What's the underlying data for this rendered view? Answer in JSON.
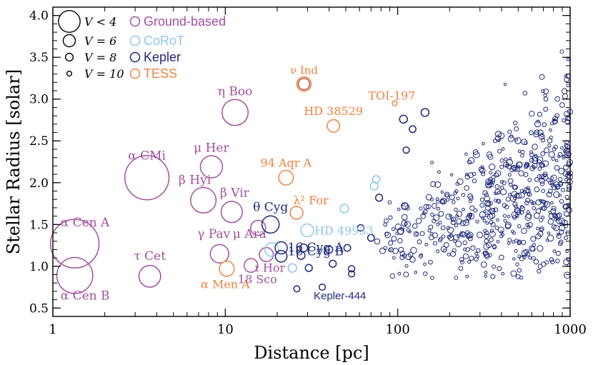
{
  "chart_data": {
    "type": "scatter",
    "xlabel": "Distance [pc]",
    "ylabel": "Stellar Radius [solar]",
    "xscale": "log",
    "xlim": [
      1,
      1000
    ],
    "ylim": [
      0.4,
      4.1
    ],
    "x_ticks": [
      1,
      10,
      100,
      1000
    ],
    "x_tick_labels": [
      "1",
      "10",
      "100",
      "1000"
    ],
    "y_ticks": [
      0.5,
      1.0,
      1.5,
      2.0,
      2.5,
      3.0,
      3.5,
      4.0
    ],
    "y_tick_labels": [
      "0.5",
      "1.0",
      "1.5",
      "2.0",
      "2.5",
      "3.0",
      "3.5",
      "4.0"
    ],
    "colors": {
      "Ground-based": "#a0509c",
      "CoRoT": "#8fc6ea",
      "Kepler": "#1f2a7a",
      "TESS": "#ee8240",
      "axis": "#000000"
    },
    "legend": {
      "placement": "top-left",
      "size_entries": [
        {
          "label": "V < 4",
          "vmag": 3.5
        },
        {
          "label": "V = 6",
          "vmag": 6
        },
        {
          "label": "V = 8",
          "vmag": 8
        },
        {
          "label": "V = 10",
          "vmag": 10
        }
      ],
      "color_entries": [
        {
          "label": "Ground-based",
          "series": "Ground-based"
        },
        {
          "label": "CoRoT",
          "series": "CoRoT"
        },
        {
          "label": "Kepler",
          "series": "Kepler"
        },
        {
          "label": "TESS",
          "series": "TESS"
        }
      ]
    },
    "series": [
      {
        "name": "Ground-based",
        "points": [
          {
            "label": "α Cen A",
            "x": 1.34,
            "y": 1.27,
            "vmag": 0.0
          },
          {
            "label": "α Cen B",
            "x": 1.34,
            "y": 0.89,
            "vmag": 1.3
          },
          {
            "label": "α CMi",
            "x": 3.51,
            "y": 2.06,
            "vmag": 0.4
          },
          {
            "label": "τ Cet",
            "x": 3.65,
            "y": 0.88,
            "vmag": 3.5
          },
          {
            "label": "β Hyi",
            "x": 7.46,
            "y": 1.79,
            "vmag": 2.8
          },
          {
            "label": "μ Her",
            "x": 8.31,
            "y": 2.19,
            "vmag": 3.4
          },
          {
            "label": "γ Pav",
            "x": 9.26,
            "y": 1.15,
            "vmag": 4.2
          },
          {
            "label": "η Boo",
            "x": 11.4,
            "y": 2.84,
            "vmag": 2.7
          },
          {
            "label": "β Vir",
            "x": 10.9,
            "y": 1.65,
            "vmag": 3.6
          },
          {
            "label": "μ Ara",
            "x": 15.5,
            "y": 1.46,
            "vmag": 5.1
          },
          {
            "label": "18 Sco",
            "x": 14.1,
            "y": 1.01,
            "vmag": 5.5
          },
          {
            "label": "ι Hor",
            "x": 17.3,
            "y": 1.14,
            "vmag": 5.4
          }
        ]
      },
      {
        "name": "CoRoT",
        "points": [
          {
            "label": "HD 49933",
            "x": 29.9,
            "y": 1.43,
            "vmag": 5.8
          },
          {
            "label": "",
            "x": 18.6,
            "y": 1.2,
            "vmag": 5.5
          },
          {
            "label": "",
            "x": 24.5,
            "y": 0.98,
            "vmag": 7.6
          },
          {
            "label": "",
            "x": 49,
            "y": 1.69,
            "vmag": 7.6
          },
          {
            "label": "",
            "x": 73,
            "y": 1.96,
            "vmag": 8.0
          },
          {
            "label": "",
            "x": 75,
            "y": 2.04,
            "vmag": 8.2
          }
        ]
      },
      {
        "name": "Kepler",
        "points": [
          {
            "label": "θ Cyg",
            "x": 18.3,
            "y": 1.5,
            "vmag": 4.5
          },
          {
            "label": "16 Cyg B",
            "x": 21.1,
            "y": 1.12,
            "vmag": 6.2
          },
          {
            "label": "16 Cyg A",
            "x": 21.1,
            "y": 1.22,
            "vmag": 6.0
          },
          {
            "label": "Kepler-444",
            "x": 36.5,
            "y": 0.75,
            "vmag": 8.9
          },
          {
            "label": "",
            "x": 27.5,
            "y": 1.13,
            "vmag": 7.9
          },
          {
            "label": "",
            "x": 28.5,
            "y": 1.22,
            "vmag": 8.0
          },
          {
            "label": "",
            "x": 30.5,
            "y": 0.98,
            "vmag": 8.4
          },
          {
            "label": "",
            "x": 40.0,
            "y": 1.2,
            "vmag": 8.2
          },
          {
            "label": "",
            "x": 42.0,
            "y": 1.03,
            "vmag": 8.4
          },
          {
            "label": "",
            "x": 51.0,
            "y": 1.22,
            "vmag": 8.6
          },
          {
            "label": "",
            "x": 54.0,
            "y": 0.97,
            "vmag": 8.8
          },
          {
            "label": "",
            "x": 54.0,
            "y": 0.91,
            "vmag": 8.9
          },
          {
            "label": "",
            "x": 61.0,
            "y": 1.46,
            "vmag": 8.8
          },
          {
            "label": "",
            "x": 70.0,
            "y": 1.34,
            "vmag": 8.6
          },
          {
            "label": "",
            "x": 78.0,
            "y": 1.82,
            "vmag": 8.4
          },
          {
            "label": "",
            "x": 26.0,
            "y": 0.73,
            "vmag": 9.0
          },
          {
            "label": "",
            "x": 108.0,
            "y": 2.76,
            "vmag": 7.9
          },
          {
            "label": "",
            "x": 144.0,
            "y": 2.84,
            "vmag": 7.9
          },
          {
            "label": "",
            "x": 122.0,
            "y": 2.64,
            "vmag": 8.6
          },
          {
            "label": "",
            "x": 112.0,
            "y": 2.39,
            "vmag": 8.9
          },
          {
            "label": "",
            "x": 110.0,
            "y": 1.72,
            "vmag": 8.6
          },
          {
            "label": "",
            "x": 104.0,
            "y": 1.42,
            "vmag": 8.9
          }
        ],
        "generated_field": {
          "description": "dense background of faint Kepler targets",
          "count": 600,
          "x_range": [
            70,
            1000
          ],
          "y_range": [
            0.8,
            4.1
          ],
          "vmag_range": [
            9,
            13
          ],
          "seed": 1979
        }
      },
      {
        "name": "TESS",
        "points": [
          {
            "label": "ν Ind",
            "x": 28.6,
            "y": 3.18,
            "vmag": 5.3
          },
          {
            "label": "TOI-197",
            "x": 96.0,
            "y": 2.95,
            "vmag": 10.0
          },
          {
            "label": "HD 38529",
            "x": 42.4,
            "y": 2.68,
            "vmag": 5.9
          },
          {
            "label": "94 Aqr A",
            "x": 22.5,
            "y": 2.06,
            "vmag": 5.2
          },
          {
            "label": "λ² For",
            "x": 25.9,
            "y": 1.64,
            "vmag": 5.8
          },
          {
            "label": "α Men A",
            "x": 10.2,
            "y": 0.97,
            "vmag": 5.1
          }
        ]
      }
    ],
    "annotations": [
      {
        "text": "ν Ind",
        "series": "TESS",
        "color_series": "TESS"
      },
      {
        "text": "TOI-197",
        "series": "TESS"
      },
      {
        "text": "HD 38529",
        "series": "TESS"
      },
      {
        "text": "94 Aqr A",
        "series": "TESS"
      },
      {
        "text": "λ² For",
        "series": "TESS"
      },
      {
        "text": "α Men A",
        "series": "TESS"
      },
      {
        "text": "HD 49933",
        "series": "CoRoT"
      },
      {
        "text": "θ Cyg",
        "series": "Kepler"
      },
      {
        "text": "16 Cyg B",
        "series": "Kepler"
      },
      {
        "text": "16 Cyg A",
        "series": "Kepler"
      },
      {
        "text": "Kepler-444",
        "series": "Kepler"
      },
      {
        "text": "α Cen A",
        "series": "Ground-based"
      },
      {
        "text": "α Cen B",
        "series": "Ground-based"
      },
      {
        "text": "α CMi",
        "series": "Ground-based"
      },
      {
        "text": "τ Cet",
        "series": "Ground-based"
      },
      {
        "text": "β Hyi",
        "series": "Ground-based"
      },
      {
        "text": "μ Her",
        "series": "Ground-based"
      },
      {
        "text": "γ Pav",
        "series": "Ground-based"
      },
      {
        "text": "η Boo",
        "series": "Ground-based"
      },
      {
        "text": "β Vir",
        "series": "Ground-based"
      },
      {
        "text": "μ Ara",
        "series": "Ground-based"
      },
      {
        "text": "18 Sco",
        "series": "Ground-based"
      },
      {
        "text": "ι Hor",
        "series": "Ground-based"
      }
    ]
  }
}
